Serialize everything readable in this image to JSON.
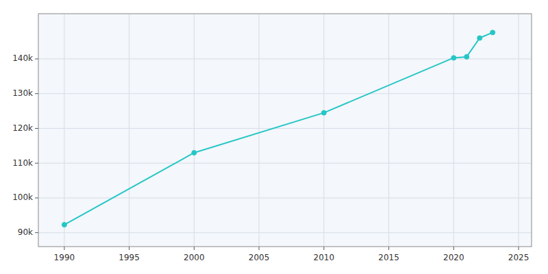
{
  "chart_data": {
    "type": "line",
    "x": [
      1990,
      2000,
      2010,
      2020,
      2021,
      2022,
      2023
    ],
    "values": [
      92291,
      113000,
      124500,
      140300,
      140600,
      146000,
      147600
    ],
    "color": "#26C6C6",
    "marker": "circle",
    "grid": true,
    "xlim": [
      1988,
      2026
    ],
    "ylim": [
      86000,
      153000
    ],
    "xticks": [
      1990,
      1995,
      2000,
      2005,
      2010,
      2015,
      2020,
      2025
    ],
    "yticks": [
      {
        "value": 90000,
        "label": "90k"
      },
      {
        "value": 100000,
        "label": "100k"
      },
      {
        "value": 110000,
        "label": "110k"
      },
      {
        "value": 120000,
        "label": "120k"
      },
      {
        "value": 130000,
        "label": "130k"
      },
      {
        "value": 140000,
        "label": "140k"
      }
    ]
  }
}
